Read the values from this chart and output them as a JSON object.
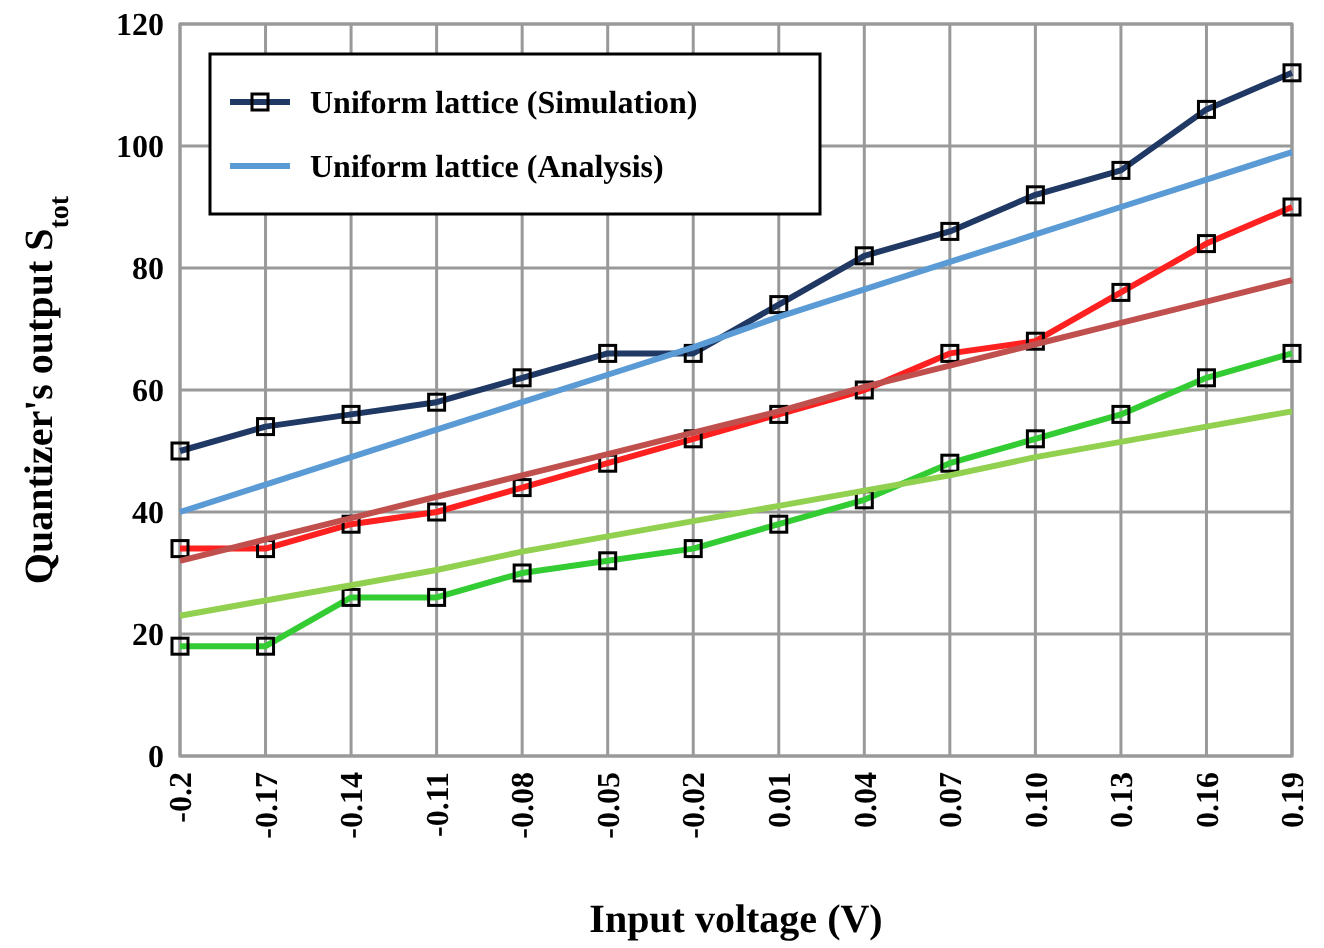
{
  "chart_data": {
    "type": "line",
    "xlabel": "Input voltage (V)",
    "ylabel": "Quantizer's output S$_{tot}$",
    "categories": [
      "-0.2",
      "-0.17",
      "-0.14",
      "-0.11",
      "-0.08",
      "-0.05",
      "-0.02",
      "0.01",
      "0.04",
      "0.07",
      "0.10",
      "0.13",
      "0.16",
      "0.19"
    ],
    "ylim": [
      0,
      120
    ],
    "yticks": [
      0,
      20,
      40,
      60,
      80,
      100,
      120
    ],
    "grid": true,
    "legend": "top left",
    "marker": "square",
    "line_style": "solid",
    "series": [
      {
        "name": "Uniform lattice (Simulation)",
        "color": "#1f3864",
        "values": [
          50,
          54,
          56,
          58,
          62,
          66,
          66,
          74,
          82,
          86,
          92,
          96,
          106,
          112
        ]
      },
      {
        "name": "Uniform lattice (Analysis)",
        "color": "#5b9bd5",
        "marker": "none",
        "values": [
          40,
          44.5,
          49,
          53.5,
          58,
          62.5,
          67,
          72,
          76.5,
          81,
          85.5,
          90,
          94.5,
          99
        ]
      },
      {
        "color": "#ff2020",
        "values": [
          34,
          34,
          38,
          40,
          44,
          48,
          52,
          56,
          60,
          66,
          68,
          76,
          84,
          90
        ]
      },
      {
        "color": "#c0504d",
        "marker": "none",
        "values": [
          32,
          35.5,
          39,
          42.5,
          46,
          49.5,
          53,
          56.5,
          60.5,
          64,
          67.5,
          71,
          74.5,
          78
        ]
      },
      {
        "color": "#33cc33",
        "values": [
          18,
          18,
          26,
          26,
          30,
          32,
          34,
          38,
          42,
          48,
          52,
          56,
          62,
          66
        ]
      },
      {
        "color": "#92d050",
        "marker": "none",
        "values": [
          23,
          25.5,
          28,
          30.5,
          33.5,
          36,
          38.5,
          41,
          43.5,
          46,
          49,
          51.5,
          54,
          56.5
        ]
      }
    ]
  }
}
